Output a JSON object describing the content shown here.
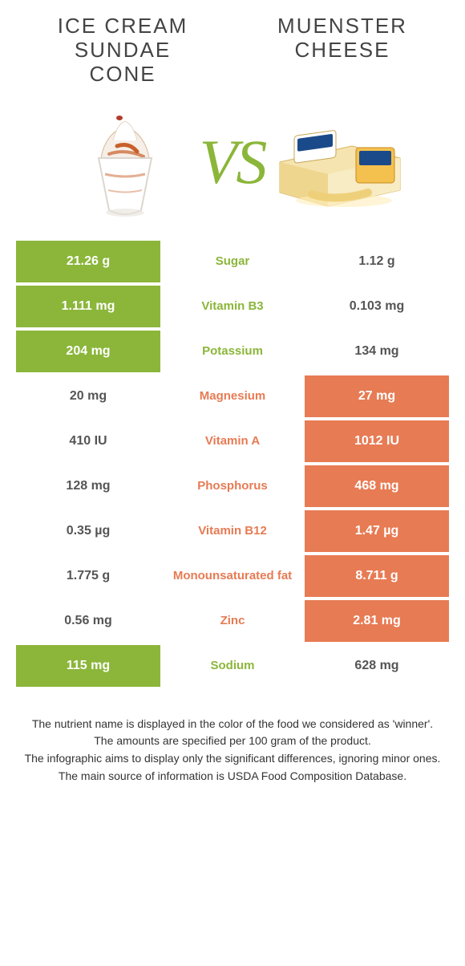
{
  "colors": {
    "green": "#8bb63a",
    "orange": "#e77b54",
    "text": "#444444",
    "bg": "#ffffff"
  },
  "left": {
    "title": "Ice Cream\nSundae\ncone"
  },
  "right": {
    "title": "Muenster\ncheese"
  },
  "vs": "VS",
  "nutrients": [
    {
      "label": "Sugar",
      "left": "21.26 g",
      "right": "1.12 g",
      "winner": "left"
    },
    {
      "label": "Vitamin B3",
      "left": "1.111 mg",
      "right": "0.103 mg",
      "winner": "left"
    },
    {
      "label": "Potassium",
      "left": "204 mg",
      "right": "134 mg",
      "winner": "left"
    },
    {
      "label": "Magnesium",
      "left": "20 mg",
      "right": "27 mg",
      "winner": "right"
    },
    {
      "label": "Vitamin A",
      "left": "410 IU",
      "right": "1012 IU",
      "winner": "right"
    },
    {
      "label": "Phosphorus",
      "left": "128 mg",
      "right": "468 mg",
      "winner": "right"
    },
    {
      "label": "Vitamin B12",
      "left": "0.35 µg",
      "right": "1.47 µg",
      "winner": "right"
    },
    {
      "label": "Monounsaturated fat",
      "left": "1.775 g",
      "right": "8.711 g",
      "winner": "right"
    },
    {
      "label": "Zinc",
      "left": "0.56 mg",
      "right": "2.81 mg",
      "winner": "right"
    },
    {
      "label": "Sodium",
      "left": "115 mg",
      "right": "628 mg",
      "winner": "left"
    }
  ],
  "notes": [
    "The nutrient name is displayed in the color of the food we considered as 'winner'.",
    "The amounts are specified per 100 gram of the product.",
    "The infographic aims to display only the significant differences, ignoring minor ones.",
    "The main source of information is USDA Food Composition Database."
  ]
}
